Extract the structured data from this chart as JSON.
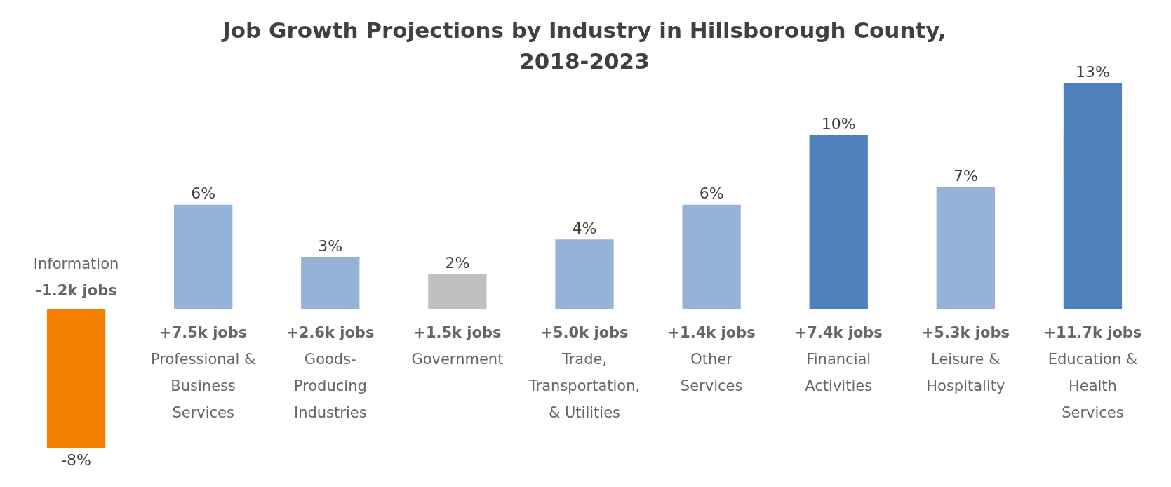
{
  "chart_data": {
    "type": "bar",
    "title": "Job Growth Projections by Industry in Hillsborough County,\n2018-2023",
    "categories": [
      "Information\n-1.2k jobs",
      "+7.5k jobs\nProfessional &\nBusiness\nServices",
      "+2.6k jobs\nGoods-\nProducing\nIndustries",
      "+1.5k jobs\nGovernment",
      "+5.0k jobs\nTrade,\nTransportation,\n& Utilities",
      "+1.4k jobs\nOther\nServices",
      "+7.4k jobs\nFinancial\nActivities",
      "+5.3k jobs\nLeisure &\nHospitality",
      "+11.7k jobs\nEducation &\nHealth\nServices"
    ],
    "values": [
      -8,
      6,
      3,
      2,
      4,
      6,
      10,
      7,
      13
    ],
    "colors": [
      "#f57f00",
      "#95b3d7",
      "#95b3d7",
      "#bfbfbf",
      "#95b3d7",
      "#95b3d7",
      "#4f81bd",
      "#95b3d7",
      "#4f81bd"
    ],
    "value_labels": [
      "-8%",
      "6%",
      "3%",
      "2%",
      "4%",
      "6%",
      "10%",
      "7%",
      "13%"
    ]
  }
}
